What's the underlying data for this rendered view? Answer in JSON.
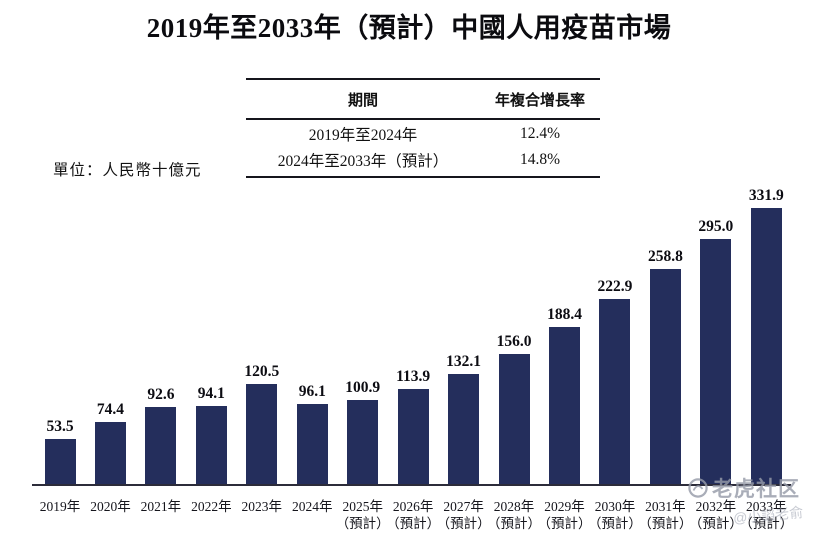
{
  "page": {
    "title": "2019年至2033年（預計）中國人用疫苗市場",
    "unit_label": "單位：人民幣十億元"
  },
  "cagr_table": {
    "headers": {
      "period": "期間",
      "cagr": "年複合增長率"
    },
    "rows": [
      {
        "period": "2019年至2024年",
        "cagr": "12.4%"
      },
      {
        "period": "2024年至2033年（預計）",
        "cagr": "14.8%"
      }
    ]
  },
  "chart_data": {
    "type": "bar",
    "title": "2019年至2033年（預計）中國人用疫苗市場",
    "ylabel": "人民幣十億元",
    "xlabel": "",
    "ylim": [
      0,
      340
    ],
    "grid": false,
    "legend": null,
    "bar_color": "#242e5c",
    "value_labels_shown": true,
    "categories": [
      {
        "label": "2019年",
        "note": ""
      },
      {
        "label": "2020年",
        "note": ""
      },
      {
        "label": "2021年",
        "note": ""
      },
      {
        "label": "2022年",
        "note": ""
      },
      {
        "label": "2023年",
        "note": ""
      },
      {
        "label": "2024年",
        "note": ""
      },
      {
        "label": "2025年",
        "note": "（預計）"
      },
      {
        "label": "2026年",
        "note": "（預計）"
      },
      {
        "label": "2027年",
        "note": "（預計）"
      },
      {
        "label": "2028年",
        "note": "（預計）"
      },
      {
        "label": "2029年",
        "note": "（預計）"
      },
      {
        "label": "2030年",
        "note": "（預計）"
      },
      {
        "label": "2031年",
        "note": "（預計）"
      },
      {
        "label": "2032年",
        "note": "（預計）"
      },
      {
        "label": "2033年",
        "note": "（預計）"
      }
    ],
    "values": [
      "53.5",
      "74.4",
      "92.6",
      "94.1",
      "120.5",
      "96.1",
      "100.9",
      "113.9",
      "132.1",
      "156.0",
      "188.4",
      "222.9",
      "258.8",
      "295.0",
      "331.9"
    ]
  },
  "watermark": {
    "community": "老虎社区",
    "user": "@小謟老俞"
  }
}
